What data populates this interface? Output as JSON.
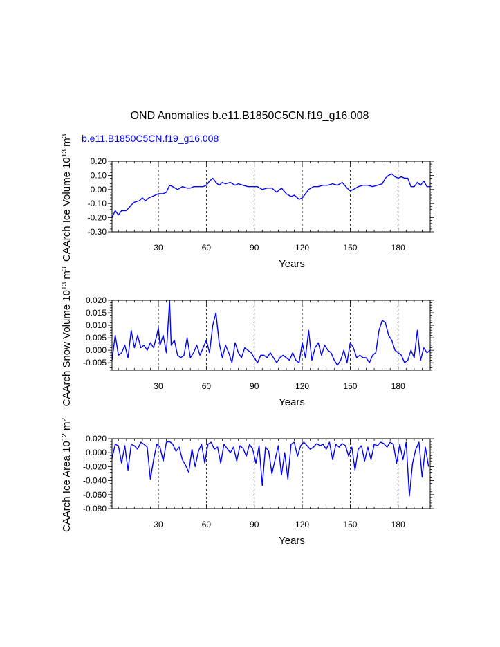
{
  "figure": {
    "title": "OND Anomalies b.e11.B1850C5CN.f19_g16.008",
    "run_label": "b.e11.B1850C5CN.f19_g16.008",
    "run_label_color": "#0000ff",
    "line_color": "#0000ff"
  },
  "chart_data": [
    {
      "type": "line",
      "ylabel": "CAArch Ice Volume 10¹³ m³",
      "xlabel": "Years",
      "xlim": [
        1,
        200
      ],
      "ylim": [
        -0.3,
        0.2
      ],
      "yticks": [
        -0.3,
        -0.2,
        -0.1,
        0.0,
        0.1,
        0.2
      ],
      "ytick_labels": [
        "-0.30",
        "-0.20",
        "-0.10",
        "0.00",
        "0.10",
        "0.20"
      ],
      "xticks": [
        30,
        60,
        90,
        120,
        150,
        180
      ],
      "xtick_labels": [
        "30",
        "60",
        "90",
        "120",
        "150",
        "180"
      ],
      "x_gridlines": [
        30,
        60,
        90,
        120,
        150,
        180
      ],
      "x": [
        1,
        3,
        5,
        7,
        10,
        13,
        15,
        18,
        20,
        22,
        24,
        26,
        28,
        30,
        33,
        35,
        37,
        39,
        42,
        45,
        48,
        50,
        52,
        55,
        58,
        60,
        62,
        64,
        66,
        68,
        70,
        72,
        75,
        78,
        80,
        83,
        86,
        89,
        92,
        95,
        98,
        101,
        104,
        107,
        110,
        113,
        115,
        117,
        118,
        120,
        122,
        124,
        127,
        130,
        133,
        136,
        139,
        142,
        145,
        148,
        150,
        152,
        155,
        158,
        161,
        164,
        167,
        170,
        172,
        174,
        176,
        178,
        180,
        182,
        184,
        186,
        188,
        190,
        192,
        194,
        196,
        198,
        200
      ],
      "y": [
        -0.2,
        -0.15,
        -0.18,
        -0.15,
        -0.15,
        -0.11,
        -0.09,
        -0.08,
        -0.06,
        -0.08,
        -0.06,
        -0.05,
        -0.04,
        -0.03,
        -0.03,
        -0.02,
        0.03,
        0.02,
        0.0,
        0.02,
        0.01,
        0.01,
        0.02,
        0.02,
        0.02,
        0.03,
        0.06,
        0.08,
        0.05,
        0.03,
        0.05,
        0.04,
        0.05,
        0.03,
        0.04,
        0.03,
        0.02,
        0.02,
        0.02,
        0.0,
        0.01,
        0.01,
        -0.02,
        0.01,
        -0.03,
        -0.05,
        -0.04,
        -0.06,
        -0.07,
        -0.06,
        -0.03,
        0.0,
        0.02,
        0.02,
        0.03,
        0.03,
        0.04,
        0.03,
        0.05,
        0.01,
        -0.01,
        0.0,
        0.02,
        0.03,
        0.03,
        0.02,
        0.03,
        0.04,
        0.08,
        0.1,
        0.11,
        0.09,
        0.08,
        0.09,
        0.08,
        0.08,
        0.02,
        0.02,
        0.05,
        0.03,
        0.06,
        0.02,
        0.02
      ]
    },
    {
      "type": "line",
      "ylabel": "CAArch Snow Volume 10¹³ m³",
      "xlabel": "Years",
      "xlim": [
        1,
        200
      ],
      "ylim": [
        -0.008,
        0.02
      ],
      "yticks": [
        -0.005,
        0.0,
        0.005,
        0.01,
        0.015,
        0.02
      ],
      "ytick_labels": [
        "-0.005",
        "0.000",
        "0.005",
        "0.010",
        "0.015",
        "0.020"
      ],
      "xticks": [
        30,
        60,
        90,
        120,
        150,
        180
      ],
      "xtick_labels": [
        "30",
        "60",
        "90",
        "120",
        "150",
        "180"
      ],
      "x_gridlines": [
        30,
        60,
        90,
        120,
        150,
        180
      ],
      "x": [
        1,
        3,
        5,
        7,
        9,
        11,
        13,
        15,
        17,
        19,
        21,
        23,
        25,
        27,
        29,
        30,
        31,
        33,
        35,
        37,
        38,
        40,
        42,
        44,
        46,
        48,
        50,
        52,
        54,
        56,
        58,
        60,
        62,
        64,
        66,
        68,
        70,
        72,
        74,
        76,
        78,
        80,
        82,
        84,
        86,
        88,
        90,
        92,
        94,
        96,
        98,
        100,
        102,
        104,
        106,
        108,
        110,
        112,
        114,
        116,
        118,
        120,
        122,
        124,
        126,
        128,
        130,
        132,
        134,
        136,
        138,
        140,
        142,
        144,
        146,
        148,
        150,
        152,
        154,
        156,
        158,
        160,
        162,
        164,
        166,
        168,
        170,
        172,
        174,
        176,
        178,
        180,
        182,
        184,
        186,
        188,
        190,
        192,
        194,
        196,
        198,
        200
      ],
      "y": [
        -0.004,
        0.006,
        -0.002,
        -0.001,
        0.002,
        -0.003,
        0.008,
        0.001,
        0.006,
        0.001,
        0.002,
        0.0,
        0.003,
        0.001,
        0.006,
        0.009,
        0.002,
        0.006,
        -0.001,
        0.02,
        0.002,
        0.004,
        -0.002,
        -0.003,
        -0.002,
        0.005,
        -0.003,
        -0.001,
        0.002,
        -0.002,
        0.001,
        0.004,
        -0.001,
        0.01,
        0.015,
        0.003,
        -0.003,
        0.002,
        -0.001,
        -0.005,
        0.003,
        -0.001,
        -0.003,
        0.001,
        0.0,
        -0.001,
        -0.003,
        -0.005,
        -0.002,
        -0.002,
        -0.003,
        -0.001,
        -0.003,
        -0.005,
        -0.003,
        -0.002,
        -0.003,
        -0.004,
        -0.001,
        -0.004,
        -0.005,
        0.003,
        -0.003,
        0.008,
        -0.004,
        0.001,
        0.003,
        -0.002,
        0.002,
        0.0,
        -0.001,
        -0.004,
        -0.006,
        -0.004,
        0.0,
        -0.005,
        0.003,
        0.001,
        -0.003,
        -0.002,
        -0.003,
        -0.003,
        -0.005,
        -0.002,
        -0.001,
        0.008,
        0.012,
        0.011,
        0.006,
        0.004,
        0.0,
        -0.001,
        -0.002,
        -0.005,
        -0.004,
        0.0,
        -0.003,
        0.008,
        -0.004,
        0.001,
        -0.001,
        0.0
      ]
    },
    {
      "type": "line",
      "ylabel": "CAArch Ice Area 10¹² m²",
      "xlabel": "Years",
      "xlim": [
        1,
        200
      ],
      "ylim": [
        -0.08,
        0.02
      ],
      "yticks": [
        -0.08,
        -0.06,
        -0.04,
        -0.02,
        0.0,
        0.02
      ],
      "ytick_labels": [
        "-0.080",
        "-0.060",
        "-0.040",
        "-0.020",
        "0.000",
        "0.020"
      ],
      "xticks": [
        30,
        60,
        90,
        120,
        150,
        180
      ],
      "xtick_labels": [
        "30",
        "60",
        "90",
        "120",
        "150",
        "180"
      ],
      "x_gridlines": [
        30,
        60,
        90,
        120,
        150,
        180
      ],
      "x": [
        1,
        3,
        5,
        7,
        9,
        11,
        13,
        15,
        17,
        19,
        21,
        23,
        25,
        27,
        29,
        31,
        33,
        35,
        37,
        39,
        41,
        43,
        45,
        47,
        49,
        51,
        53,
        55,
        57,
        59,
        61,
        63,
        65,
        67,
        69,
        71,
        73,
        75,
        77,
        79,
        81,
        83,
        85,
        87,
        89,
        91,
        93,
        95,
        97,
        99,
        101,
        103,
        105,
        107,
        109,
        111,
        113,
        115,
        117,
        119,
        121,
        123,
        125,
        127,
        129,
        131,
        133,
        135,
        137,
        139,
        141,
        143,
        145,
        147,
        149,
        151,
        153,
        155,
        157,
        159,
        161,
        163,
        165,
        167,
        169,
        171,
        173,
        175,
        177,
        179,
        181,
        183,
        185,
        187,
        189,
        191,
        193,
        195,
        197,
        199
      ],
      "y": [
        -0.008,
        0.012,
        0.01,
        -0.015,
        0.01,
        -0.025,
        0.012,
        0.01,
        0.005,
        0.015,
        0.012,
        0.008,
        -0.038,
        -0.01,
        0.012,
        0.008,
        -0.012,
        0.015,
        0.016,
        0.012,
        0.002,
        0.008,
        -0.01,
        -0.018,
        -0.028,
        0.005,
        -0.02,
        0.002,
        0.012,
        -0.015,
        0.012,
        0.015,
        0.005,
        0.008,
        -0.015,
        0.012,
        0.006,
        0.0,
        0.008,
        -0.012,
        0.01,
        0.006,
        -0.005,
        0.012,
        0.005,
        -0.015,
        0.01,
        -0.047,
        0.008,
        0.002,
        -0.03,
        -0.01,
        0.01,
        -0.032,
        0.0,
        -0.038,
        0.012,
        0.015,
        -0.005,
        0.01,
        0.015,
        0.01,
        0.005,
        0.008,
        0.013,
        0.01,
        0.012,
        0.005,
        0.015,
        -0.01,
        0.012,
        0.008,
        0.013,
        0.01,
        -0.005,
        0.008,
        -0.025,
        0.005,
        0.01,
        -0.012,
        0.008,
        -0.01,
        0.012,
        0.01,
        0.015,
        0.013,
        0.008,
        0.015,
        0.012,
        -0.015,
        0.012,
        -0.01,
        0.015,
        -0.062,
        -0.015,
        0.005,
        0.015,
        -0.035,
        0.008,
        -0.02
      ]
    }
  ]
}
